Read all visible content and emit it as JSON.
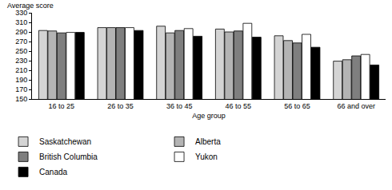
{
  "chart_data": {
    "type": "bar",
    "y_label": "Average score",
    "x_label": "Age group",
    "categories": [
      "16 to 25",
      "26 to 35",
      "36 to 45",
      "46 to 55",
      "56 to 65",
      "66 and over"
    ],
    "series": [
      {
        "name": "Saskatchewan",
        "color": "#d4d4d4",
        "values": [
          293,
          299,
          302,
          296,
          282,
          229
        ]
      },
      {
        "name": "Alberta",
        "color": "#b4b4b4",
        "values": [
          292,
          299,
          288,
          290,
          272,
          232
        ]
      },
      {
        "name": "British Columbia",
        "color": "#7f7f7f",
        "values": [
          288,
          299,
          293,
          292,
          267,
          240
        ]
      },
      {
        "name": "Yukon",
        "color": "#ffffff",
        "values": [
          289,
          299,
          297,
          308,
          285,
          243
        ]
      },
      {
        "name": "Canada",
        "color": "#000000",
        "values": [
          289,
          293,
          281,
          279,
          258,
          221
        ]
      }
    ],
    "ylim": [
      150,
      330
    ],
    "yticks": [
      150,
      170,
      190,
      210,
      230,
      250,
      270,
      290,
      310,
      330
    ],
    "grid": false,
    "legend": "bottom"
  }
}
